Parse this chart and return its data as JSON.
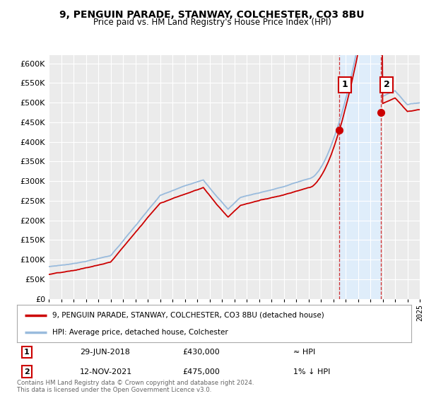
{
  "title": "9, PENGUIN PARADE, STANWAY, COLCHESTER, CO3 8BU",
  "subtitle": "Price paid vs. HM Land Registry's House Price Index (HPI)",
  "background_color": "#ffffff",
  "plot_bg_color": "#ebebeb",
  "grid_color": "#ffffff",
  "hpi_color": "#99bbdd",
  "price_color": "#cc0000",
  "shade_color": "#ddeeff",
  "annotation1_date": 2018.49,
  "annotation2_date": 2021.87,
  "annotation1_price": 430000,
  "annotation2_price": 475000,
  "legend_line1": "9, PENGUIN PARADE, STANWAY, COLCHESTER, CO3 8BU (detached house)",
  "legend_line2": "HPI: Average price, detached house, Colchester",
  "table_row1": [
    "1",
    "29-JUN-2018",
    "£430,000",
    "≈ HPI"
  ],
  "table_row2": [
    "2",
    "12-NOV-2021",
    "£475,000",
    "1% ↓ HPI"
  ],
  "footer1": "Contains HM Land Registry data © Crown copyright and database right 2024.",
  "footer2": "This data is licensed under the Open Government Licence v3.0.",
  "ylim_max": 620000,
  "ylim_min": 0,
  "xlim_min": 1995,
  "xlim_max": 2025
}
